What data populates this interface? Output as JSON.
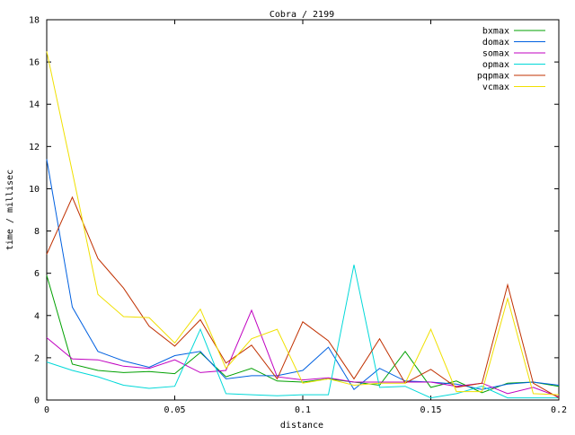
{
  "chart_data": {
    "type": "line",
    "title": "Cobra / 2199",
    "xlabel": "distance",
    "ylabel": "time / millisec",
    "xlim": [
      0,
      0.2
    ],
    "ylim": [
      0,
      18
    ],
    "x_ticks": [
      0,
      0.05,
      0.1,
      0.15,
      0.2
    ],
    "x_tick_labels": [
      "0",
      "0.05",
      "0.1",
      "0.15",
      "0.2"
    ],
    "y_ticks": [
      0,
      2,
      4,
      6,
      8,
      10,
      12,
      14,
      16,
      18
    ],
    "y_tick_labels": [
      "0",
      "2",
      "4",
      "6",
      "8",
      "10",
      "12",
      "14",
      "16",
      "18"
    ],
    "grid": false,
    "legend_position": "top-right",
    "x": [
      0,
      0.01,
      0.02,
      0.03,
      0.04,
      0.05,
      0.06,
      0.07,
      0.08,
      0.09,
      0.1,
      0.11,
      0.12,
      0.13,
      0.14,
      0.15,
      0.16,
      0.17,
      0.18,
      0.19,
      0.2
    ],
    "series": [
      {
        "name": "bxmax",
        "color": "#00a000",
        "values": [
          5.9,
          1.7,
          1.4,
          1.3,
          1.35,
          1.25,
          2.25,
          1.1,
          1.5,
          0.9,
          0.85,
          1.0,
          0.85,
          0.7,
          2.3,
          0.6,
          0.9,
          0.35,
          0.8,
          0.85,
          0.65
        ]
      },
      {
        "name": "domax",
        "color": "#0060e0",
        "values": [
          11.4,
          4.4,
          2.3,
          1.85,
          1.55,
          2.1,
          2.3,
          1.0,
          1.15,
          1.15,
          1.4,
          2.5,
          0.5,
          1.5,
          0.9,
          0.85,
          0.75,
          0.5,
          0.75,
          0.85,
          0.7
        ]
      },
      {
        "name": "somax",
        "color": "#c000c0",
        "values": [
          2.95,
          1.95,
          1.9,
          1.6,
          1.5,
          1.9,
          1.3,
          1.4,
          4.25,
          1.1,
          0.95,
          1.05,
          0.85,
          0.85,
          0.85,
          0.85,
          0.65,
          0.8,
          0.3,
          0.6,
          0.15
        ]
      },
      {
        "name": "opmax",
        "color": "#00d8d8",
        "values": [
          1.8,
          1.4,
          1.1,
          0.7,
          0.55,
          0.65,
          3.35,
          0.3,
          0.25,
          0.2,
          0.25,
          0.25,
          6.4,
          0.6,
          0.65,
          0.1,
          0.3,
          0.65,
          0.1,
          0.1,
          0.1
        ]
      },
      {
        "name": "pqpmax",
        "color": "#c03000",
        "values": [
          6.9,
          9.6,
          6.7,
          5.3,
          3.5,
          2.55,
          3.8,
          1.75,
          2.6,
          1.0,
          3.7,
          2.8,
          1.0,
          2.9,
          0.8,
          1.45,
          0.6,
          0.8,
          5.45,
          0.8,
          0.1
        ]
      },
      {
        "name": "vcmax",
        "color": "#f0e000",
        "values": [
          16.5,
          10.8,
          5.0,
          3.95,
          3.9,
          2.7,
          4.3,
          1.5,
          2.9,
          3.35,
          0.8,
          1.0,
          0.7,
          0.8,
          0.8,
          3.35,
          0.4,
          0.4,
          4.8,
          0.3,
          0.25
        ]
      }
    ]
  }
}
